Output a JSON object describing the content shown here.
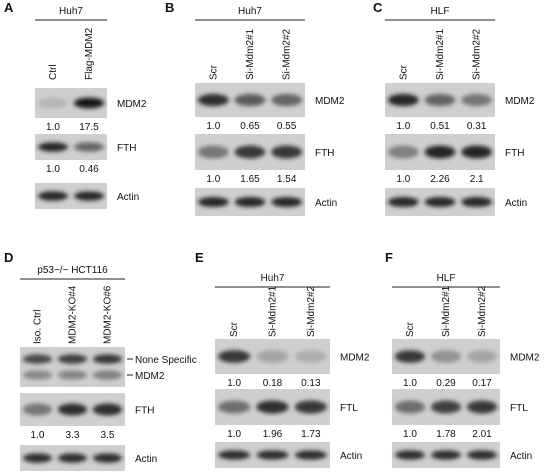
{
  "panels": [
    {
      "letter": "A",
      "cell_line": "Huh7",
      "lanes": [
        "Ctrl",
        "Flag-MDM2"
      ],
      "blots": [
        {
          "labels": [
            "MDM2"
          ],
          "quant": [
            "1.0",
            "17.5"
          ]
        },
        {
          "labels": [
            "FTH"
          ],
          "quant": [
            "1.0",
            "0.46"
          ]
        },
        {
          "labels": [
            "Actin"
          ]
        }
      ]
    },
    {
      "letter": "B",
      "cell_line": "Huh7",
      "lanes": [
        "Scr",
        "Si-Mdm2#1",
        "Si-Mdm2#2"
      ],
      "blots": [
        {
          "labels": [
            "MDM2"
          ],
          "quant": [
            "1.0",
            "0.65",
            "0.55"
          ]
        },
        {
          "labels": [
            "FTH"
          ],
          "quant": [
            "1.0",
            "1.65",
            "1.54"
          ]
        },
        {
          "labels": [
            "Actin"
          ]
        }
      ]
    },
    {
      "letter": "C",
      "cell_line": "HLF",
      "lanes": [
        "Scr",
        "Si-Mdm2#1",
        "Si-Mdm2#2"
      ],
      "blots": [
        {
          "labels": [
            "MDM2"
          ],
          "quant": [
            "1.0",
            "0.51",
            "0.31"
          ]
        },
        {
          "labels": [
            "FTH"
          ],
          "quant": [
            "1.0",
            "2.26",
            "2.1"
          ]
        },
        {
          "labels": [
            "Actin"
          ]
        }
      ]
    },
    {
      "letter": "D",
      "cell_line": "p53−/− HCT116",
      "lanes": [
        "Iso. Ctrl",
        "MDM2-KO#4",
        "MDM2-KO#6"
      ],
      "blots": [
        {
          "labels": [
            "None Specific",
            "MDM2"
          ]
        },
        {
          "labels": [
            "FTH"
          ],
          "quant": [
            "1.0",
            "3.3",
            "3.5"
          ]
        },
        {
          "labels": [
            "Actin"
          ]
        }
      ]
    },
    {
      "letter": "E",
      "cell_line": "Huh7",
      "lanes": [
        "Scr",
        "Si-Mdm2#1",
        "Si-Mdm2#2"
      ],
      "blots": [
        {
          "labels": [
            "MDM2"
          ],
          "quant": [
            "1.0",
            "0.18",
            "0.13"
          ]
        },
        {
          "labels": [
            "FTL"
          ],
          "quant": [
            "1.0",
            "1.96",
            "1.73"
          ]
        },
        {
          "labels": [
            "Actin"
          ]
        }
      ]
    },
    {
      "letter": "F",
      "cell_line": "HLF",
      "lanes": [
        "Scr",
        "Si-Mdm2#1",
        "Si-Mdm2#2"
      ],
      "blots": [
        {
          "labels": [
            "MDM2"
          ],
          "quant": [
            "1.0",
            "0.29",
            "0.17"
          ]
        },
        {
          "labels": [
            "FTL"
          ],
          "quant": [
            "1.0",
            "1.78",
            "2.01"
          ]
        },
        {
          "labels": [
            "Actin"
          ]
        }
      ]
    }
  ]
}
